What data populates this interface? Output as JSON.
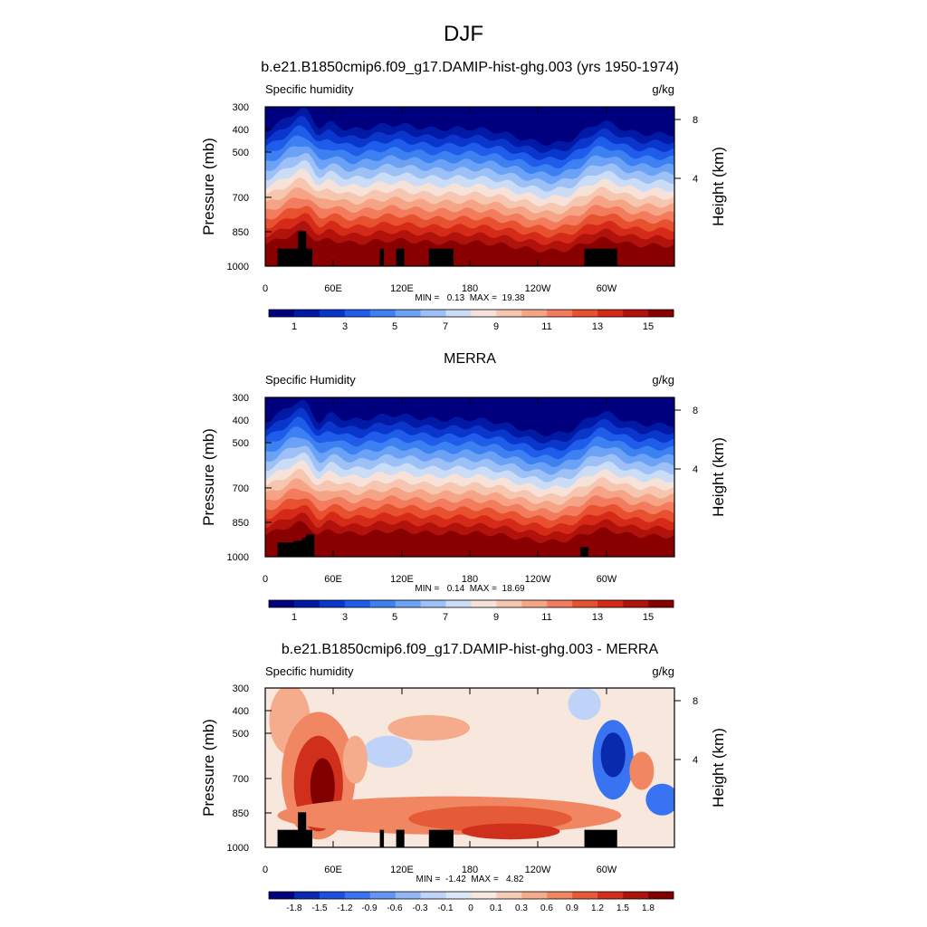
{
  "figure": {
    "title": "DJF"
  },
  "chart_data": [
    {
      "type": "heatmap",
      "id": "model",
      "title": "b.e21.B1850cmip6.f09_g17.DAMIP-hist-ghg.003 (yrs 1950-1974)",
      "subtitle_left": "Specific humidity",
      "subtitle_right": "g/kg",
      "ylabel": "Pressure (mb)",
      "ylabel_right": "Height (km)",
      "x_ticks": [
        "0",
        "60E",
        "120E",
        "180",
        "120W",
        "60W"
      ],
      "y_ticks": [
        "300",
        "400",
        "500",
        "700",
        "850",
        "1000"
      ],
      "y_ticks_right": [
        "8",
        "4"
      ],
      "stats": "MIN =   0.13  MAX =  19.38",
      "min": 0.13,
      "max": 19.38,
      "colorbar_levels": [
        "1",
        "3",
        "5",
        "7",
        "9",
        "11",
        "13",
        "15"
      ]
    },
    {
      "type": "heatmap",
      "id": "obs",
      "title": "MERRA",
      "subtitle_left": "Specific Humidity",
      "subtitle_right": "g/kg",
      "ylabel": "Pressure (mb)",
      "ylabel_right": "Height (km)",
      "x_ticks": [
        "0",
        "60E",
        "120E",
        "180",
        "120W",
        "60W"
      ],
      "y_ticks": [
        "300",
        "400",
        "500",
        "700",
        "850",
        "1000"
      ],
      "y_ticks_right": [
        "8",
        "4"
      ],
      "stats": "MIN =   0.14  MAX =  18.69",
      "min": 0.14,
      "max": 18.69,
      "colorbar_levels": [
        "1",
        "3",
        "5",
        "7",
        "9",
        "11",
        "13",
        "15"
      ]
    },
    {
      "type": "heatmap",
      "id": "diff",
      "title": "b.e21.B1850cmip6.f09_g17.DAMIP-hist-ghg.003 - MERRA",
      "subtitle_left": "Specific humidity",
      "subtitle_right": "g/kg",
      "ylabel": "Pressure (mb)",
      "ylabel_right": "Height (km)",
      "x_ticks": [
        "0",
        "60E",
        "120E",
        "180",
        "120W",
        "60W"
      ],
      "y_ticks": [
        "300",
        "400",
        "500",
        "700",
        "850",
        "1000"
      ],
      "y_ticks_right": [
        "8",
        "4"
      ],
      "stats": "MIN =  -1.42  MAX =   4.82",
      "min": -1.42,
      "max": 4.82,
      "colorbar_levels": [
        "-1.8",
        "-1.5",
        "-1.2",
        "-0.9",
        "-0.6",
        "-0.3",
        "-0.1",
        "0",
        "0.1",
        "0.3",
        "0.6",
        "0.9",
        "1.2",
        "1.5",
        "1.8"
      ]
    }
  ],
  "colors": {
    "seq": [
      "#00007f",
      "#001aa6",
      "#0a36cc",
      "#1f5cea",
      "#3c80f2",
      "#6ba2f5",
      "#9dc1f6",
      "#cbdcf6",
      "#f7e2d9",
      "#f7c6b1",
      "#f5a586",
      "#f27c5d",
      "#e8512f",
      "#d42a17",
      "#b1120c",
      "#880000"
    ],
    "div": [
      "#00007f",
      "#0a2aad",
      "#1d4fe0",
      "#3a73f2",
      "#6495f4",
      "#92b5f6",
      "#bed3f7",
      "#dbe6f7",
      "#f7e7dc",
      "#f7ccb7",
      "#f5ac8c",
      "#f18662",
      "#e55a37",
      "#d0301b",
      "#ab140d",
      "#800000"
    ],
    "terrain": "#000000"
  }
}
